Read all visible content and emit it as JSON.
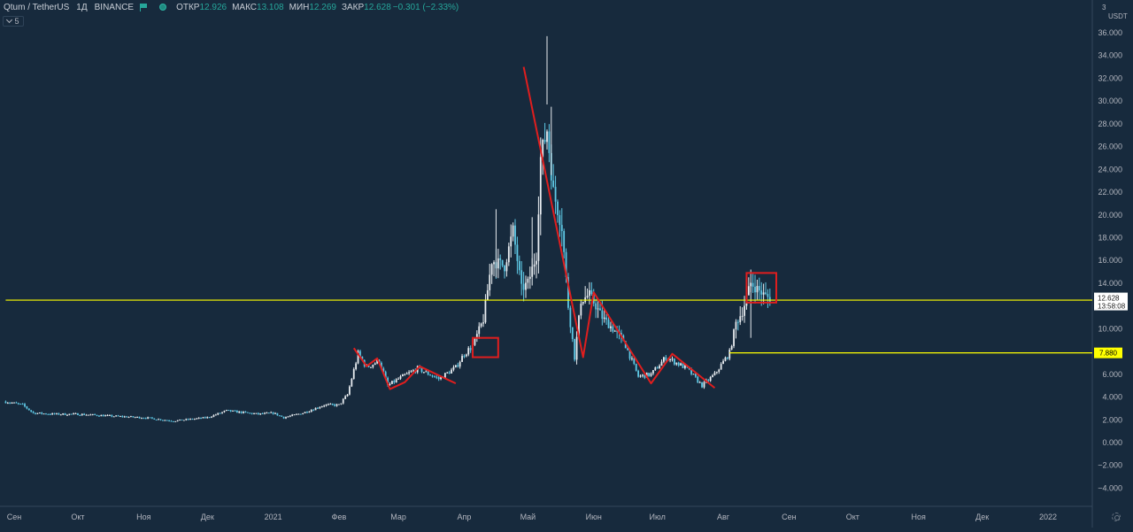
{
  "header": {
    "symbol": "Qtum / TetherUS",
    "interval": "1Д",
    "exchange": "BINANCE",
    "open_label": "ОТКР",
    "open_value": "12.926",
    "high_label": "МАКС",
    "high_value": "13.108",
    "low_label": "МИН",
    "low_value": "12.269",
    "close_label": "ЗАКР",
    "close_value": "12.628",
    "change": "−0.301 (−2.33%)",
    "studies_count": "5"
  },
  "colors": {
    "background": "#172a3d",
    "candle_up": "#e8ecf0",
    "candle_down": "#5ec8e5",
    "level_line": "#ffff00",
    "drawing": "#e01e1e",
    "axis_text": "#b2b5be"
  },
  "chart_data": {
    "type": "candlestick",
    "currency_unit": "USDT",
    "ylim": [
      -5,
      37
    ],
    "y_ticks": [
      -4,
      -2,
      0,
      2,
      4,
      6,
      8,
      10,
      12,
      14,
      16,
      18,
      20,
      22,
      24,
      26,
      28,
      30,
      32,
      34,
      36
    ],
    "y_tick_labels": [
      "−4.000",
      "−2.000",
      "0.000",
      "2.000",
      "4.000",
      "6.000",
      "8.000",
      "10.000",
      "12.000",
      "14.000",
      "16.000",
      "18.000",
      "20.000",
      "22.000",
      "24.000",
      "26.000",
      "28.000",
      "30.000",
      "32.000",
      "34.000",
      "36.000"
    ],
    "axis_top_label": "3",
    "x_labels": [
      "Сен",
      "Окт",
      "Ноя",
      "Дек",
      "2021",
      "Фев",
      "Мар",
      "Апр",
      "Май",
      "Июн",
      "Июл",
      "Авг",
      "Сен",
      "Окт",
      "Ноя",
      "Дек",
      "2022"
    ],
    "x_label_dates": [
      "2020-09-01",
      "2020-10-01",
      "2020-11-01",
      "2020-12-01",
      "2021-01-01",
      "2021-02-01",
      "2021-03-01",
      "2021-04-01",
      "2021-05-01",
      "2021-06-01",
      "2021-07-01",
      "2021-08-01",
      "2021-09-01",
      "2021-10-01",
      "2021-11-01",
      "2021-12-01",
      "2022-01-01"
    ],
    "price_series": [
      [
        "2020-08-28",
        3.6
      ],
      [
        "2020-09-05",
        3.3
      ],
      [
        "2020-09-10",
        2.6
      ],
      [
        "2020-09-20",
        2.5
      ],
      [
        "2020-10-01",
        2.5
      ],
      [
        "2020-10-20",
        2.3
      ],
      [
        "2020-11-01",
        2.2
      ],
      [
        "2020-11-15",
        1.9
      ],
      [
        "2020-12-01",
        2.2
      ],
      [
        "2020-12-10",
        2.8
      ],
      [
        "2020-12-25",
        2.5
      ],
      [
        "2021-01-01",
        2.6
      ],
      [
        "2021-01-06",
        2.2
      ],
      [
        "2021-01-15",
        2.6
      ],
      [
        "2021-01-25",
        3.3
      ],
      [
        "2021-02-01",
        3.3
      ],
      [
        "2021-02-05",
        4.2
      ],
      [
        "2021-02-10",
        7.8
      ],
      [
        "2021-02-14",
        6.6
      ],
      [
        "2021-02-20",
        7.2
      ],
      [
        "2021-02-24",
        5.0
      ],
      [
        "2021-03-01",
        5.6
      ],
      [
        "2021-03-10",
        6.5
      ],
      [
        "2021-03-20",
        5.6
      ],
      [
        "2021-03-28",
        6.6
      ],
      [
        "2021-04-01",
        7.8
      ],
      [
        "2021-04-05",
        8.5
      ],
      [
        "2021-04-10",
        10.8
      ],
      [
        "2021-04-14",
        16.0
      ],
      [
        "2021-04-20",
        15.5
      ],
      [
        "2021-04-24",
        18.6
      ],
      [
        "2021-04-28",
        13.5
      ],
      [
        "2021-05-01",
        14.0
      ],
      [
        "2021-05-05",
        16.5
      ],
      [
        "2021-05-07",
        25.0
      ],
      [
        "2021-05-10",
        27.5
      ],
      [
        "2021-05-13",
        22.0
      ],
      [
        "2021-05-17",
        19.0
      ],
      [
        "2021-05-20",
        12.0
      ],
      [
        "2021-05-23",
        7.5
      ],
      [
        "2021-05-26",
        12.5
      ],
      [
        "2021-05-30",
        13.0
      ],
      [
        "2021-06-05",
        11.0
      ],
      [
        "2021-06-15",
        9.0
      ],
      [
        "2021-06-22",
        5.8
      ],
      [
        "2021-06-28",
        6.0
      ],
      [
        "2021-07-05",
        7.5
      ],
      [
        "2021-07-15",
        6.5
      ],
      [
        "2021-07-22",
        5.0
      ],
      [
        "2021-07-28",
        6.0
      ],
      [
        "2021-08-04",
        7.9
      ],
      [
        "2021-08-07",
        10.5
      ],
      [
        "2021-08-10",
        11.5
      ],
      [
        "2021-08-14",
        14.0
      ],
      [
        "2021-08-20",
        13.0
      ],
      [
        "2021-08-23",
        12.628
      ]
    ],
    "last_price": "12.628",
    "countdown": "13:58:08",
    "levels": [
      {
        "value": 12.514,
        "label": "12.514",
        "start_date": "2020-08-28"
      },
      {
        "value": 7.88,
        "label": "7.880",
        "start_date": "2021-08-04"
      }
    ],
    "drawings": {
      "trend_lines": [
        {
          "points": [
            [
              "2021-02-08",
              8.3
            ],
            [
              "2021-02-14",
              6.7
            ],
            [
              "2021-02-19",
              7.4
            ],
            [
              "2021-02-25",
              4.7
            ],
            [
              "2021-03-04",
              5.3
            ],
            [
              "2021-03-11",
              6.7
            ],
            [
              "2021-03-28",
              5.2
            ]
          ]
        },
        {
          "points": [
            [
              "2021-04-29",
              33.0
            ],
            [
              "2021-05-27",
              7.5
            ],
            [
              "2021-06-01",
              13.2
            ],
            [
              "2021-06-28",
              5.2
            ],
            [
              "2021-07-08",
              7.8
            ],
            [
              "2021-07-28",
              4.8
            ]
          ]
        }
      ],
      "boxes": [
        {
          "x0": "2021-04-05",
          "x1": "2021-04-17",
          "y0": 7.5,
          "y1": 9.2
        },
        {
          "x0": "2021-08-12",
          "x1": "2021-08-26",
          "y0": 12.3,
          "y1": 14.9
        }
      ]
    }
  }
}
